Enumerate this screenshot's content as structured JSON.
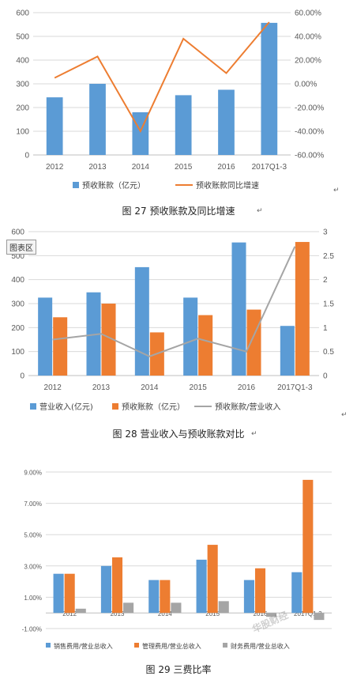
{
  "chart_data": [
    {
      "type": "bar",
      "categories": [
        "2012",
        "2013",
        "2014",
        "2015",
        "2016",
        "2017Q1-3"
      ],
      "series": [
        {
          "name": "预收账款（亿元）",
          "kind": "bar",
          "axis": "left",
          "color": "#5B9BD5",
          "values": [
            243,
            300,
            180,
            252,
            275,
            557
          ]
        },
        {
          "name": "预收账款同比增速",
          "kind": "line",
          "axis": "right",
          "color": "#ED7D31",
          "values": [
            0.05,
            0.23,
            -0.4,
            0.38,
            0.09,
            0.52
          ]
        }
      ],
      "y_left": {
        "ticks": [
          "0",
          "100",
          "200",
          "300",
          "400",
          "500",
          "600"
        ],
        "min": 0,
        "max": 600
      },
      "y_right": {
        "ticks": [
          "-60.00%",
          "-40.00%",
          "-20.00%",
          "0.00%",
          "20.00%",
          "40.00%",
          "60.00%"
        ],
        "min": -0.6,
        "max": 0.6
      },
      "legend_position": "bottom",
      "caption": "图 27  预收账款及同比增速"
    },
    {
      "type": "bar",
      "categories": [
        "2012",
        "2013",
        "2014",
        "2015",
        "2016",
        "2017Q1-3"
      ],
      "series": [
        {
          "name": "营业收入(亿元)",
          "kind": "bar",
          "axis": "left",
          "color": "#5B9BD5",
          "values": [
            325,
            347,
            452,
            325,
            555,
            207
          ]
        },
        {
          "name": "预收账款（亿元）",
          "kind": "bar",
          "axis": "left",
          "color": "#ED7D31",
          "values": [
            243,
            300,
            180,
            252,
            275,
            557
          ]
        },
        {
          "name": "预收账款/营业收入",
          "kind": "line",
          "axis": "right",
          "color": "#A5A5A5",
          "values": [
            0.75,
            0.87,
            0.4,
            0.77,
            0.5,
            2.69
          ]
        }
      ],
      "y_left": {
        "ticks": [
          "0",
          "100",
          "200",
          "300",
          "400",
          "500",
          "600"
        ],
        "min": 0,
        "max": 600
      },
      "y_right": {
        "ticks": [
          "0",
          "0.5",
          "1",
          "1.5",
          "2",
          "2.5",
          "3"
        ],
        "min": 0,
        "max": 3
      },
      "legend_position": "bottom",
      "tag": "图表区",
      "caption": "图 28  营业收入与预收账款对比"
    },
    {
      "type": "bar",
      "categories": [
        "2012",
        "2013",
        "2014",
        "2015",
        "2016",
        "2017Q1-3"
      ],
      "series": [
        {
          "name": "销售费用/营业总收入",
          "color": "#5B9BD5",
          "values": [
            0.025,
            0.03,
            0.021,
            0.034,
            0.021,
            0.026
          ]
        },
        {
          "name": "管理费用/营业总收入",
          "color": "#ED7D31",
          "values": [
            0.025,
            0.0355,
            0.021,
            0.0435,
            0.0285,
            0.085
          ]
        },
        {
          "name": "财务费用/营业总收入",
          "color": "#A5A5A5",
          "values": [
            0.0027,
            0.0065,
            0.0065,
            0.0075,
            -0.0025,
            -0.0045
          ]
        }
      ],
      "y_left": {
        "ticks": [
          "-1.00%",
          "1.00%",
          "3.00%",
          "5.00%",
          "7.00%",
          "9.00%"
        ],
        "min": -0.01,
        "max": 0.09
      },
      "legend_position": "bottom",
      "caption": "图 29  三费比率"
    }
  ],
  "watermark": "华股财经"
}
